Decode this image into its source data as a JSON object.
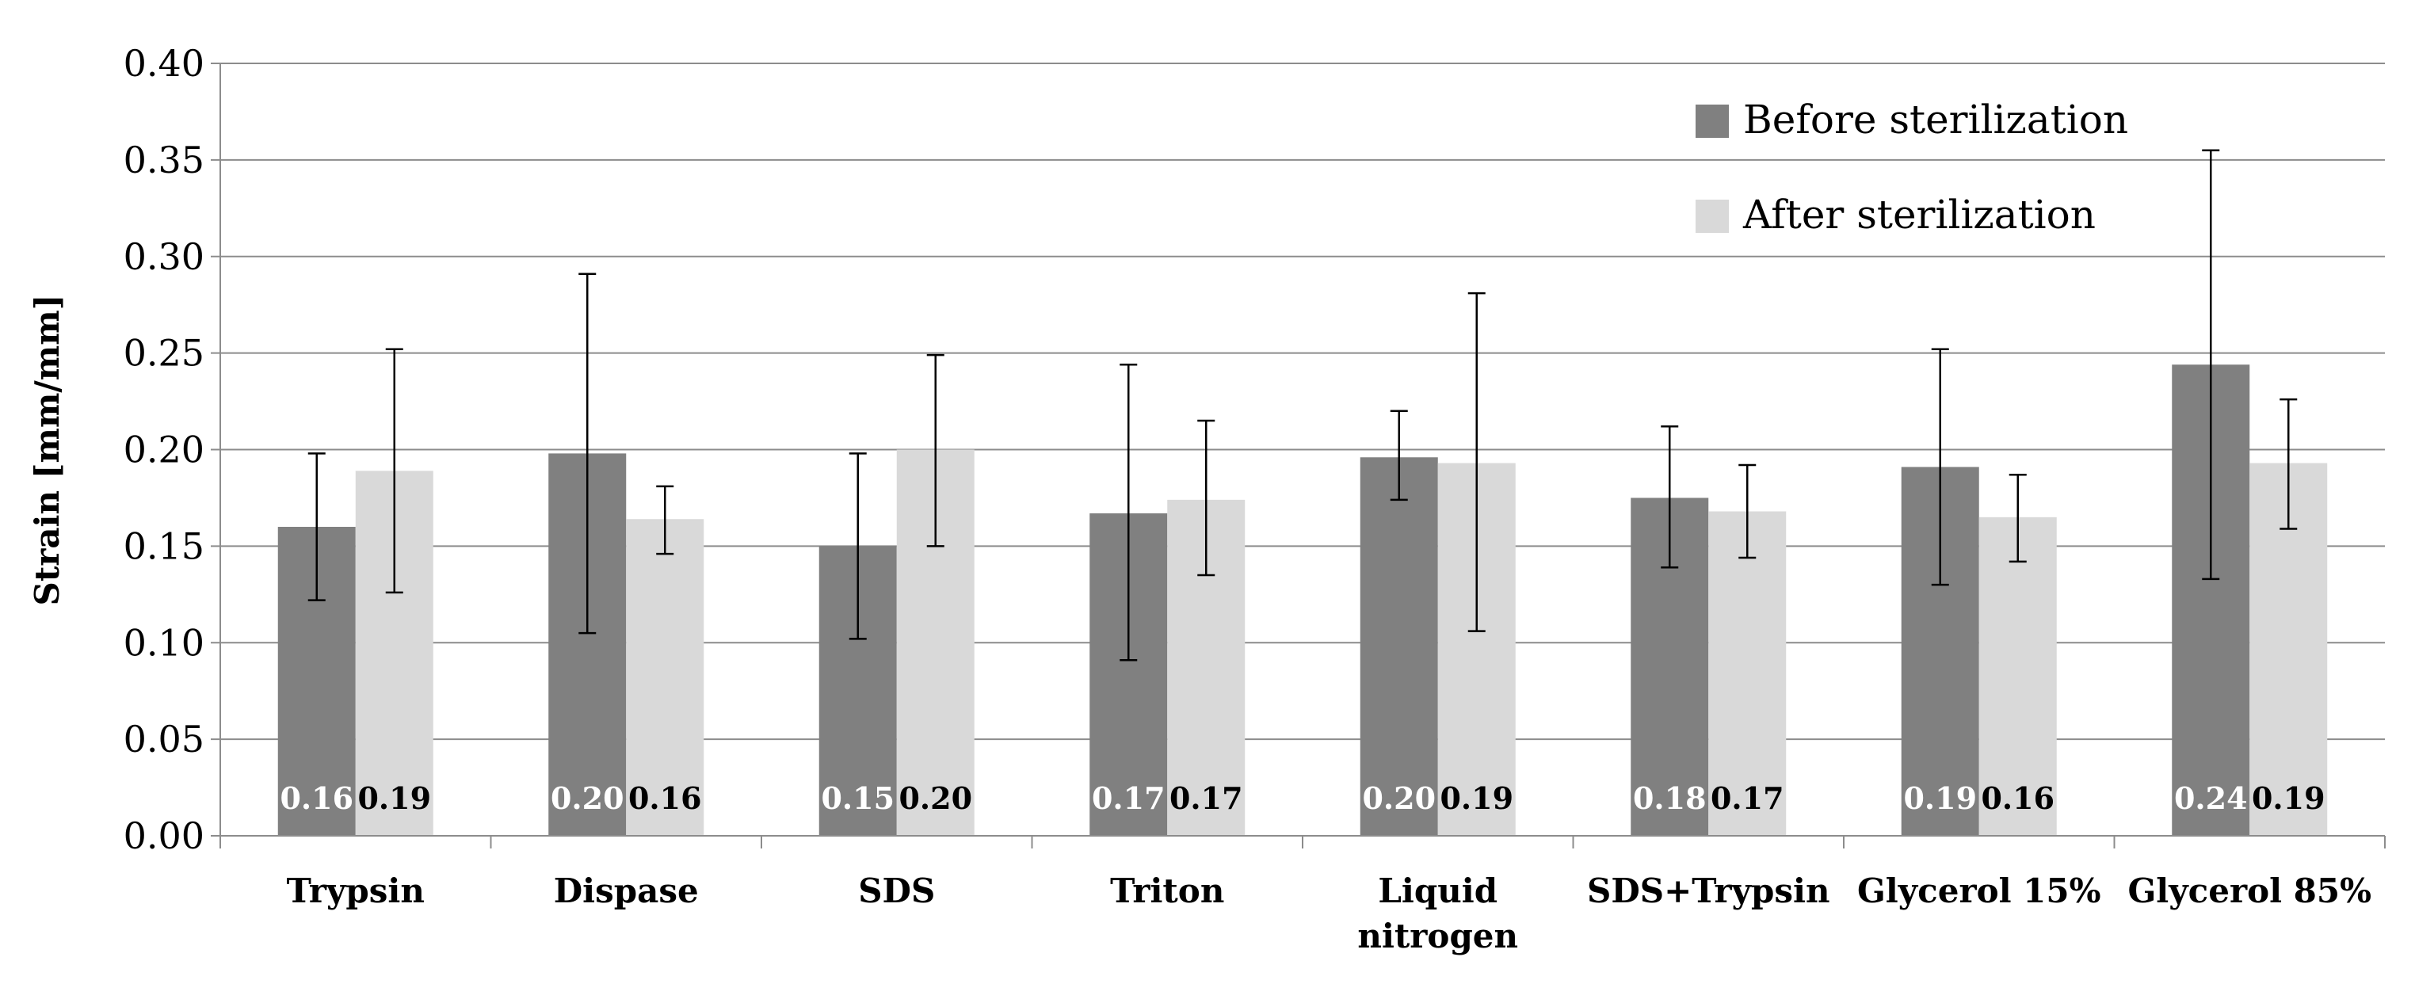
{
  "chart_data": {
    "type": "bar",
    "title": "",
    "xlabel": "",
    "ylabel": "Strain [mm/mm]",
    "ylim": [
      0,
      0.4
    ],
    "ytick_step": 0.05,
    "yticks": [
      "0.00",
      "0.05",
      "0.10",
      "0.15",
      "0.20",
      "0.25",
      "0.30",
      "0.35",
      "0.40"
    ],
    "grid": true,
    "legend_position": "top-right",
    "categories": [
      [
        "Trypsin"
      ],
      [
        "Dispase"
      ],
      [
        "SDS"
      ],
      [
        "Triton"
      ],
      [
        "Liquid",
        "nitrogen"
      ],
      [
        "SDS+Trypsin"
      ],
      [
        "Glycerol 15%"
      ],
      [
        "Glycerol 85%"
      ]
    ],
    "series": [
      {
        "name": "Before sterilization",
        "color": "#808080",
        "label_color": "#ffffff",
        "values": [
          0.16,
          0.198,
          0.15,
          0.167,
          0.196,
          0.175,
          0.191,
          0.244
        ],
        "error_low": [
          0.122,
          0.105,
          0.102,
          0.091,
          0.174,
          0.139,
          0.13,
          0.133
        ],
        "error_high": [
          0.198,
          0.291,
          0.198,
          0.244,
          0.22,
          0.212,
          0.252,
          0.355
        ],
        "data_labels": [
          "0.16",
          "0.20",
          "0.15",
          "0.17",
          "0.20",
          "0.18",
          "0.19",
          "0.24"
        ]
      },
      {
        "name": "After sterilization",
        "color": "#d9d9d9",
        "label_color": "#000000",
        "values": [
          0.189,
          0.164,
          0.2,
          0.174,
          0.193,
          0.168,
          0.165,
          0.193
        ],
        "error_low": [
          0.126,
          0.146,
          0.15,
          0.135,
          0.106,
          0.144,
          0.142,
          0.159
        ],
        "error_high": [
          0.252,
          0.181,
          0.249,
          0.215,
          0.281,
          0.192,
          0.187,
          0.226
        ],
        "data_labels": [
          "0.19",
          "0.16",
          "0.20",
          "0.17",
          "0.19",
          "0.17",
          "0.16",
          "0.19"
        ]
      }
    ]
  }
}
